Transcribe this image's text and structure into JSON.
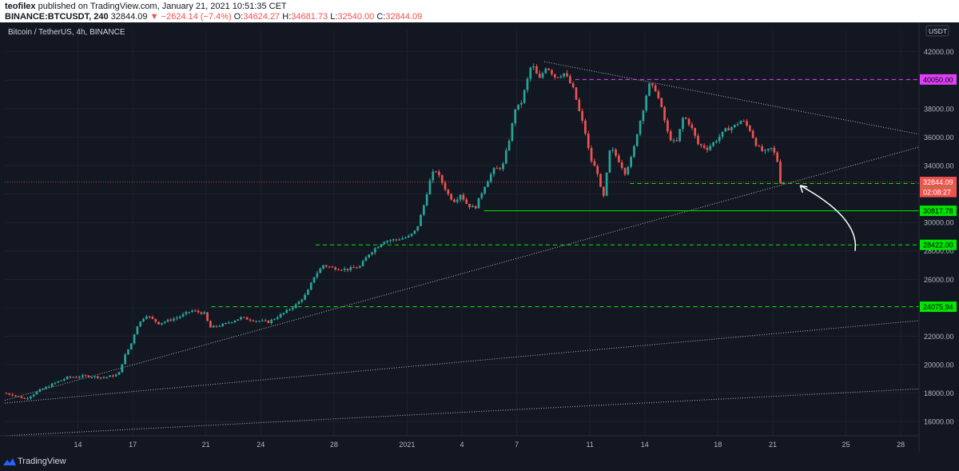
{
  "header": {
    "author": "teofilex",
    "published": "published on TradingView.com, January 21, 2021 10:51:35 CET",
    "symbol": "BINANCE:BTCUSDT, 240",
    "last": "32844.09",
    "change": "▼ −2624.14 (−7.4%)",
    "open_label": "O:",
    "open": "34624.27",
    "high_label": "H:",
    "high": "34681.73",
    "low_label": "L:",
    "low": "32540.00",
    "close_label": "C:",
    "close": "32844.09"
  },
  "footer": {
    "brand": "TradingView"
  },
  "colors": {
    "background": "#131722",
    "up": "#26a69a",
    "down": "#ef5350",
    "magenta": "#e040fb",
    "green_label": "#00e600",
    "axis_text": "#b2b5be",
    "trendline": "#b2b5be"
  },
  "chart_data": {
    "type": "candlestick",
    "title": "Bitcoin / TetherUS, 4h, BINANCE",
    "currency": "USDT",
    "y_axis": {
      "ticks": [
        "16000.00",
        "18000.00",
        "20000.00",
        "22000.00",
        "24000.00",
        "26000.00",
        "28000.00",
        "30000.00",
        "32000.00",
        "34000.00",
        "36000.00",
        "38000.00",
        "40000.00",
        "42000.00"
      ],
      "range": [
        15000,
        43500
      ]
    },
    "x_axis": {
      "ticks": [
        {
          "label": "14",
          "day": 14
        },
        {
          "label": "17",
          "day": 17
        },
        {
          "label": "21",
          "day": 21
        },
        {
          "label": "24",
          "day": 24
        },
        {
          "label": "28",
          "day": 28
        },
        {
          "label": "2021",
          "day": 32
        },
        {
          "label": "4",
          "day": 35
        },
        {
          "label": "7",
          "day": 38
        },
        {
          "label": "11",
          "day": 42
        },
        {
          "label": "14",
          "day": 45
        },
        {
          "label": "18",
          "day": 49
        },
        {
          "label": "21",
          "day": 52
        },
        {
          "label": "25",
          "day": 56
        },
        {
          "label": "28",
          "day": 59
        }
      ],
      "range_days_dec2020": [
        10,
        60
      ]
    },
    "price_path": [
      [
        10.0,
        18000
      ],
      [
        10.5,
        17900
      ],
      [
        11.2,
        17600
      ],
      [
        12.0,
        18200
      ],
      [
        12.8,
        18700
      ],
      [
        13.5,
        19100
      ],
      [
        14.5,
        19200
      ],
      [
        15.5,
        19100
      ],
      [
        16.3,
        19300
      ],
      [
        16.6,
        20500
      ],
      [
        17.0,
        21500
      ],
      [
        17.3,
        22700
      ],
      [
        17.8,
        23500
      ],
      [
        18.5,
        22900
      ],
      [
        19.5,
        23300
      ],
      [
        20.3,
        23800
      ],
      [
        21.0,
        23600
      ],
      [
        21.3,
        22600
      ],
      [
        22.0,
        22800
      ],
      [
        23.0,
        23300
      ],
      [
        23.8,
        23100
      ],
      [
        24.5,
        23000
      ],
      [
        25.3,
        23600
      ],
      [
        26.0,
        24200
      ],
      [
        26.6,
        25000
      ],
      [
        27.0,
        26200
      ],
      [
        27.5,
        27000
      ],
      [
        28.0,
        26800
      ],
      [
        28.8,
        26700
      ],
      [
        29.5,
        26900
      ],
      [
        30.0,
        27800
      ],
      [
        30.8,
        28700
      ],
      [
        31.5,
        28800
      ],
      [
        32.2,
        29000
      ],
      [
        32.6,
        29500
      ],
      [
        33.0,
        31200
      ],
      [
        33.3,
        32800
      ],
      [
        33.6,
        33800
      ],
      [
        34.0,
        32800
      ],
      [
        34.4,
        31800
      ],
      [
        34.7,
        31500
      ],
      [
        35.0,
        32000
      ],
      [
        35.4,
        31200
      ],
      [
        35.8,
        31000
      ],
      [
        36.3,
        32500
      ],
      [
        36.8,
        33700
      ],
      [
        37.3,
        33900
      ],
      [
        37.7,
        36000
      ],
      [
        38.0,
        38000
      ],
      [
        38.3,
        38300
      ],
      [
        38.6,
        39700
      ],
      [
        38.9,
        41200
      ],
      [
        39.3,
        40000
      ],
      [
        39.7,
        41000
      ],
      [
        40.2,
        40200
      ],
      [
        40.7,
        40500
      ],
      [
        41.2,
        39300
      ],
      [
        41.5,
        37800
      ],
      [
        41.8,
        36500
      ],
      [
        42.1,
        34500
      ],
      [
        42.5,
        33500
      ],
      [
        42.8,
        31500
      ],
      [
        43.2,
        35300
      ],
      [
        43.6,
        34500
      ],
      [
        44.0,
        33500
      ],
      [
        44.4,
        34700
      ],
      [
        44.7,
        36500
      ],
      [
        45.0,
        38000
      ],
      [
        45.3,
        39700
      ],
      [
        45.7,
        39300
      ],
      [
        46.0,
        38000
      ],
      [
        46.4,
        36000
      ],
      [
        46.8,
        35500
      ],
      [
        47.2,
        37500
      ],
      [
        47.6,
        36800
      ],
      [
        48.0,
        35500
      ],
      [
        48.5,
        35200
      ],
      [
        49.0,
        35800
      ],
      [
        49.5,
        36500
      ],
      [
        50.0,
        36800
      ],
      [
        50.4,
        37200
      ],
      [
        50.8,
        36600
      ],
      [
        51.2,
        35400
      ],
      [
        51.6,
        34900
      ],
      [
        52.0,
        35200
      ],
      [
        52.3,
        34600
      ],
      [
        52.5,
        32844
      ]
    ],
    "levels": [
      {
        "price": 40050,
        "label": "40050.00",
        "style": "magenta-dashed"
      },
      {
        "price": 32737.4,
        "label": "32737.40",
        "style": "green-dashed"
      },
      {
        "price": 30817.78,
        "label": "30817.78",
        "style": "green-solid"
      },
      {
        "price": 28422.0,
        "label": "28422.00",
        "style": "green-dashed"
      },
      {
        "price": 24075.94,
        "label": "24075.94",
        "style": "green-dashed"
      }
    ],
    "current": {
      "price": 32844.09,
      "label": "32844.09",
      "timer": "02:08:27"
    },
    "trendlines": [
      {
        "from": [
          39.5,
          41300
        ],
        "to": [
          60,
          36200
        ]
      },
      {
        "from": [
          10,
          17500
        ],
        "to": [
          60,
          35300
        ]
      },
      {
        "from": [
          10,
          17300
        ],
        "to": [
          60,
          23100
        ]
      },
      {
        "from": [
          10,
          15000
        ],
        "to": [
          60,
          18300
        ]
      }
    ],
    "arrow": {
      "from": [
        56.5,
        28000
      ],
      "to": [
        53.5,
        32600
      ]
    }
  }
}
